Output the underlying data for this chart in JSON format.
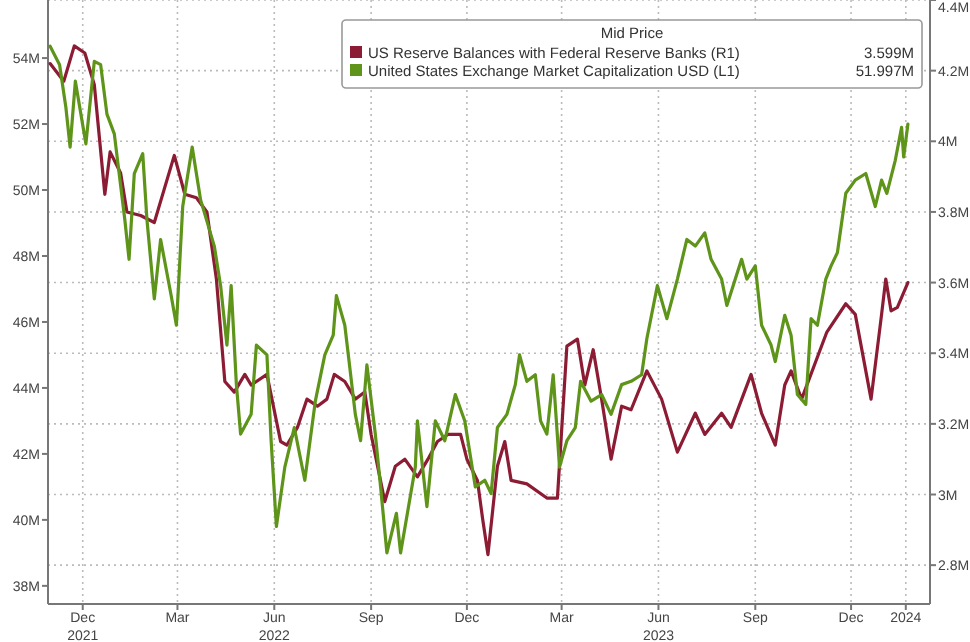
{
  "chart_data": {
    "type": "line",
    "legend_title": "Mid Price",
    "legend": "top right",
    "grid": true,
    "xlim": [
      "2021-11-12",
      "2024-02-28"
    ],
    "xticks": [
      {
        "value": "2021-12-15",
        "label": "Dec\n2021"
      },
      {
        "value": "2022-03-15",
        "label": "Mar"
      },
      {
        "value": "2022-06-15",
        "label": "Jun\n2022"
      },
      {
        "value": "2022-09-15",
        "label": "Sep"
      },
      {
        "value": "2022-12-15",
        "label": "Dec"
      },
      {
        "value": "2023-03-15",
        "label": "Mar"
      },
      {
        "value": "2023-06-15",
        "label": "Jun\n2023"
      },
      {
        "value": "2023-09-15",
        "label": "Sep"
      },
      {
        "value": "2023-12-15",
        "label": "Dec"
      },
      {
        "value": "2024-02-05",
        "label": "2024"
      }
    ],
    "ylim": [
      37.45,
      55.76
    ],
    "yticks": [
      {
        "value": 38,
        "label": "38M"
      },
      {
        "value": 40,
        "label": "40M"
      },
      {
        "value": 42,
        "label": "42M"
      },
      {
        "value": 44,
        "label": "44M"
      },
      {
        "value": 46,
        "label": "46M"
      },
      {
        "value": 48,
        "label": "48M"
      },
      {
        "value": 50,
        "label": "50M"
      },
      {
        "value": 52,
        "label": "52M"
      },
      {
        "value": 54,
        "label": "54M"
      }
    ],
    "y2lim": [
      2.69,
      4.4
    ],
    "y2ticks": [
      {
        "value": 2.8,
        "label": "2.8M"
      },
      {
        "value": 3,
        "label": "3M"
      },
      {
        "value": 3.2,
        "label": "3.2M"
      },
      {
        "value": 3.4,
        "label": "3.4M"
      },
      {
        "value": 3.6,
        "label": "3.6M"
      },
      {
        "value": 3.8,
        "label": "3.8M"
      },
      {
        "value": 4,
        "label": "4M"
      },
      {
        "value": 4.2,
        "label": "4.2M"
      },
      {
        "value": 4.4,
        "label": "4.4M"
      }
    ],
    "annotations": [
      "3.599M",
      "51.997M"
    ],
    "series": [
      {
        "name": "US Reserve Balances with Federal Reserve Banks (R1)",
        "color": "#8c1c34",
        "axis": "y2",
        "x": [
          "2021-11-14",
          "2021-11-27",
          "2021-12-07",
          "2021-12-17",
          "2021-12-26",
          "2022-01-05",
          "2022-01-10",
          "2022-01-20",
          "2022-01-26",
          "2022-02-08",
          "2022-02-21",
          "2022-03-12",
          "2022-03-22",
          "2022-04-02",
          "2022-04-12",
          "2022-04-21",
          "2022-04-29",
          "2022-05-08",
          "2022-05-18",
          "2022-05-24",
          "2022-06-08",
          "2022-06-21",
          "2022-06-27",
          "2022-07-07",
          "2022-07-16",
          "2022-07-26",
          "2022-08-04",
          "2022-08-11",
          "2022-08-21",
          "2022-08-31",
          "2022-09-09",
          "2022-09-15",
          "2022-09-28",
          "2022-10-08",
          "2022-10-17",
          "2022-10-29",
          "2022-11-08",
          "2022-11-17",
          "2022-11-27",
          "2022-12-09",
          "2022-12-15",
          "2022-12-25",
          "2022-12-30",
          "2023-01-04",
          "2023-01-13",
          "2023-01-20",
          "2023-01-26",
          "2023-02-10",
          "2023-03-01",
          "2023-03-11",
          "2023-03-20",
          "2023-03-30",
          "2023-04-06",
          "2023-04-14",
          "2023-04-22",
          "2023-05-01",
          "2023-05-11",
          "2023-05-20",
          "2023-06-04",
          "2023-06-18",
          "2023-07-03",
          "2023-07-20",
          "2023-07-29",
          "2023-08-14",
          "2023-08-23",
          "2023-09-11",
          "2023-09-21",
          "2023-10-04",
          "2023-10-13",
          "2023-10-19",
          "2023-10-29",
          "2023-11-22",
          "2023-12-10",
          "2023-12-19",
          "2024-01-03",
          "2024-01-13",
          "2024-01-17",
          "2024-01-22",
          "2024-01-28",
          "2024-02-07"
        ],
        "values": [
          4.22,
          4.17,
          4.27,
          4.25,
          4.16,
          3.85,
          3.97,
          3.91,
          3.8,
          3.79,
          3.77,
          3.96,
          3.85,
          3.84,
          3.8,
          3.61,
          3.32,
          3.29,
          3.34,
          3.31,
          3.34,
          3.15,
          3.14,
          3.19,
          3.27,
          3.25,
          3.27,
          3.34,
          3.32,
          3.27,
          3.29,
          3.17,
          2.98,
          3.08,
          3.1,
          3.05,
          3.1,
          3.15,
          3.17,
          3.17,
          3.1,
          3.04,
          2.93,
          2.83,
          3.08,
          3.15,
          3.04,
          3.03,
          2.99,
          2.99,
          3.42,
          3.44,
          3.31,
          3.41,
          3.27,
          3.1,
          3.25,
          3.24,
          3.35,
          3.27,
          3.12,
          3.23,
          3.17,
          3.23,
          3.19,
          3.34,
          3.23,
          3.14,
          3.31,
          3.35,
          3.27,
          3.46,
          3.54,
          3.51,
          3.27,
          3.51,
          3.61,
          3.52,
          3.53,
          3.6
        ]
      },
      {
        "name": "United States Exchange Market Capitalization USD (L1)",
        "color": "#5e9419",
        "axis": "y",
        "x": [
          "2021-11-14",
          "2021-11-23",
          "2021-11-29",
          "2021-12-03",
          "2021-12-08",
          "2021-12-18",
          "2021-12-26",
          "2022-01-01",
          "2022-01-07",
          "2022-01-14",
          "2022-01-24",
          "2022-01-28",
          "2022-02-02",
          "2022-02-10",
          "2022-02-14",
          "2022-02-21",
          "2022-02-27",
          "2022-03-09",
          "2022-03-14",
          "2022-03-20",
          "2022-03-29",
          "2022-04-06",
          "2022-04-19",
          "2022-04-25",
          "2022-05-01",
          "2022-05-05",
          "2022-05-10",
          "2022-05-14",
          "2022-05-24",
          "2022-05-29",
          "2022-06-08",
          "2022-06-12",
          "2022-06-17",
          "2022-06-25",
          "2022-07-04",
          "2022-07-14",
          "2022-07-24",
          "2022-08-02",
          "2022-08-10",
          "2022-08-13",
          "2022-08-21",
          "2022-08-31",
          "2022-09-05",
          "2022-09-11",
          "2022-09-19",
          "2022-09-24",
          "2022-09-30",
          "2022-10-09",
          "2022-10-13",
          "2022-10-27",
          "2022-10-29",
          "2022-11-07",
          "2022-11-15",
          "2022-11-24",
          "2022-12-04",
          "2022-12-13",
          "2022-12-23",
          "2023-01-01",
          "2023-01-07",
          "2023-01-13",
          "2023-01-22",
          "2023-01-30",
          "2023-02-03",
          "2023-02-10",
          "2023-02-18",
          "2023-02-23",
          "2023-03-01",
          "2023-03-07",
          "2023-03-13",
          "2023-03-20",
          "2023-03-28",
          "2023-04-02",
          "2023-04-12",
          "2023-04-22",
          "2023-05-01",
          "2023-05-11",
          "2023-05-20",
          "2023-05-30",
          "2023-06-04",
          "2023-06-14",
          "2023-06-23",
          "2023-07-03",
          "2023-07-12",
          "2023-07-20",
          "2023-07-29",
          "2023-08-04",
          "2023-08-14",
          "2023-08-19",
          "2023-08-27",
          "2023-09-02",
          "2023-09-07",
          "2023-09-15",
          "2023-09-21",
          "2023-09-30",
          "2023-10-04",
          "2023-10-13",
          "2023-10-19",
          "2023-10-25",
          "2023-11-02",
          "2023-11-07",
          "2023-11-13",
          "2023-11-21",
          "2023-11-26",
          "2023-12-02",
          "2023-12-10",
          "2023-12-19",
          "2023-12-29",
          "2024-01-07",
          "2024-01-13",
          "2024-01-18",
          "2024-01-26",
          "2024-02-01",
          "2024-02-03",
          "2024-02-07"
        ],
        "values": [
          54.36,
          53.8,
          52.5,
          51.3,
          53.3,
          51.4,
          53.9,
          53.8,
          52.3,
          51.7,
          49.1,
          47.9,
          50.5,
          51.1,
          49.1,
          46.7,
          48.5,
          46.8,
          45.9,
          49.5,
          51.3,
          49.7,
          48.3,
          47.1,
          45.3,
          47.1,
          44.1,
          42.6,
          43.2,
          45.3,
          45,
          42.4,
          39.8,
          41.6,
          42.8,
          41.2,
          43.6,
          45,
          45.6,
          46.8,
          45.9,
          43.2,
          42.4,
          44.7,
          42.6,
          41,
          39,
          40.2,
          39,
          41.6,
          43,
          40.4,
          43,
          42.4,
          43.8,
          43,
          41,
          41.2,
          40.8,
          42.8,
          43.2,
          44.1,
          45,
          44.2,
          44.4,
          43,
          42.6,
          44.4,
          41.6,
          42.4,
          42.8,
          44.2,
          43.6,
          43.8,
          43.2,
          44.1,
          44.2,
          44.4,
          45.5,
          47.1,
          46.1,
          47.3,
          48.5,
          48.3,
          48.7,
          47.9,
          47.3,
          46.5,
          47.3,
          47.9,
          47.3,
          47.7,
          45.9,
          45.3,
          44.8,
          46.2,
          45.6,
          43.8,
          43.5,
          46.1,
          45.9,
          47.3,
          47.7,
          48.1,
          49.9,
          50.3,
          50.5,
          49.5,
          50.3,
          49.9,
          50.9,
          51.9,
          51,
          52
        ]
      }
    ]
  }
}
